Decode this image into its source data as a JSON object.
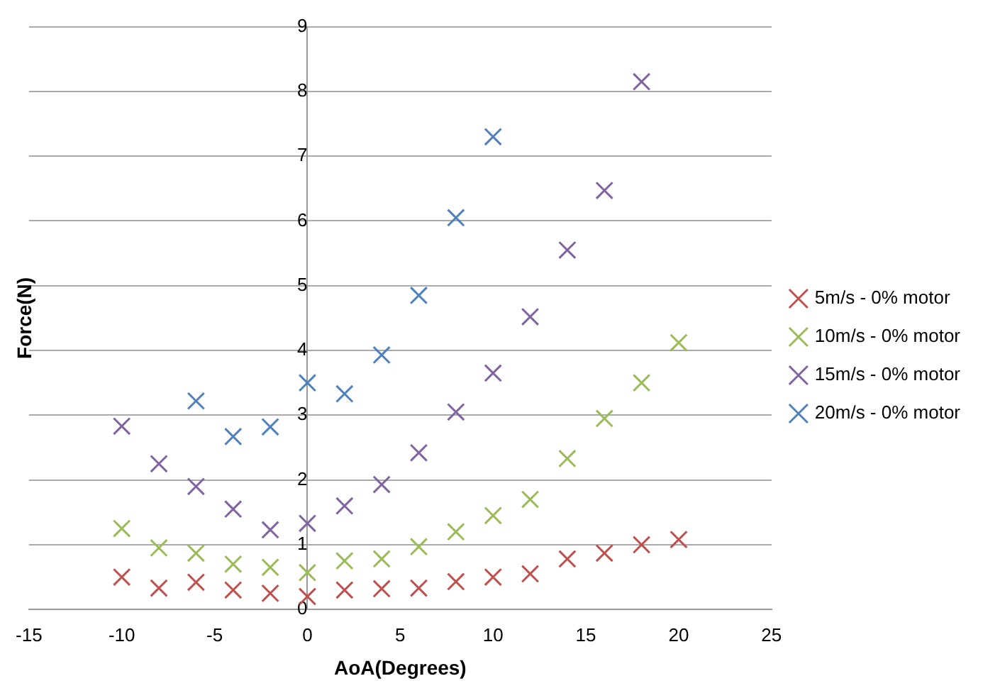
{
  "chart_data": {
    "type": "scatter",
    "xlabel": "AoA(Degrees)",
    "ylabel": "Force(N)",
    "xlim": [
      -15,
      25
    ],
    "xticks": [
      -15,
      -10,
      -5,
      0,
      5,
      10,
      15,
      20,
      25
    ],
    "ylim": [
      0,
      9
    ],
    "yticks": [
      0,
      1,
      2,
      3,
      4,
      5,
      6,
      7,
      8,
      9
    ],
    "grid": "y",
    "legend": "right",
    "series": [
      {
        "name": "5m/s - 0% motor",
        "color": "#c0504d",
        "marker": "cross",
        "x": [
          -10,
          -8,
          -6,
          -4,
          -2,
          0,
          2,
          4,
          6,
          8,
          10,
          12,
          14,
          16,
          18,
          20
        ],
        "values": [
          0.5,
          0.33,
          0.42,
          0.3,
          0.25,
          0.2,
          0.3,
          0.32,
          0.33,
          0.43,
          0.5,
          0.55,
          0.78,
          0.87,
          1.0,
          1.08
        ]
      },
      {
        "name": "10m/s - 0% motor",
        "color": "#9bbb59",
        "marker": "cross",
        "x": [
          -10,
          -8,
          -6,
          -4,
          -2,
          0,
          2,
          4,
          6,
          8,
          10,
          12,
          14,
          16,
          18,
          20
        ],
        "values": [
          1.25,
          0.95,
          0.87,
          0.7,
          0.65,
          0.57,
          0.75,
          0.78,
          0.97,
          1.2,
          1.45,
          1.7,
          2.33,
          2.95,
          3.5,
          4.12
        ]
      },
      {
        "name": "15m/s - 0% motor",
        "color": "#8064a2",
        "marker": "cross",
        "x": [
          -10,
          -8,
          -6,
          -4,
          -2,
          0,
          2,
          4,
          6,
          8,
          10,
          12,
          14,
          16,
          18
        ],
        "values": [
          2.83,
          2.25,
          1.9,
          1.55,
          1.23,
          1.33,
          1.6,
          1.93,
          2.42,
          3.05,
          3.65,
          4.52,
          5.55,
          6.47,
          8.15
        ]
      },
      {
        "name": "20m/s - 0% motor",
        "color": "#4f81bd",
        "marker": "cross",
        "x": [
          -6,
          -4,
          -2,
          0,
          2,
          4,
          6,
          8,
          10
        ],
        "values": [
          3.22,
          2.67,
          2.82,
          3.5,
          3.33,
          3.93,
          4.85,
          6.05,
          7.3
        ]
      }
    ]
  }
}
